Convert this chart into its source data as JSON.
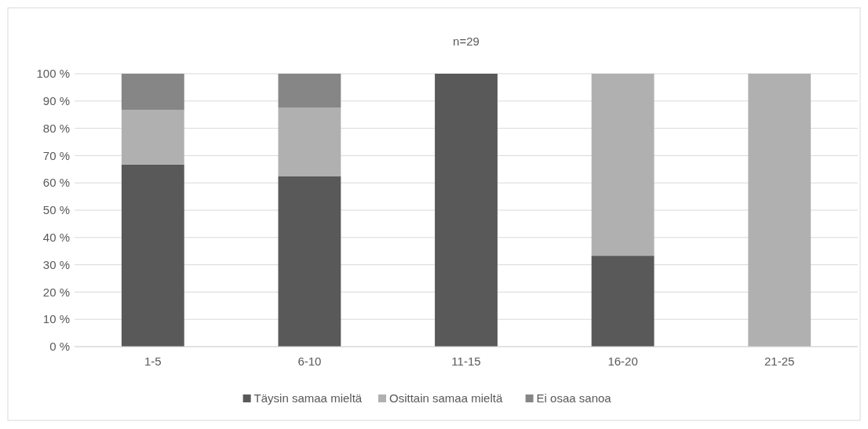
{
  "chart_data": {
    "type": "bar",
    "title": "n=29",
    "categories": [
      "1-5",
      "6-10",
      "11-15",
      "16-20",
      "21-25"
    ],
    "stacked": true,
    "series": [
      {
        "name": "Täysin samaa mieltä",
        "color": "#595959",
        "values": [
          66.7,
          62.5,
          100,
          33.3,
          0
        ]
      },
      {
        "name": "Osittain samaa mieltä",
        "color": "#b0b0b0",
        "values": [
          20,
          25,
          0,
          66.7,
          100
        ]
      },
      {
        "name": "Ei osaa sanoa",
        "color": "#868686",
        "values": [
          13.3,
          12.5,
          0,
          0,
          0
        ]
      }
    ],
    "ylim": [
      0,
      100
    ],
    "yticks": [
      {
        "value": 0,
        "label": "0 %"
      },
      {
        "value": 10,
        "label": "10 %"
      },
      {
        "value": 20,
        "label": "20 %"
      },
      {
        "value": 30,
        "label": "30 %"
      },
      {
        "value": 40,
        "label": "40 %"
      },
      {
        "value": 50,
        "label": "50 %"
      },
      {
        "value": 60,
        "label": "60 %"
      },
      {
        "value": 70,
        "label": "70 %"
      },
      {
        "value": 80,
        "label": "80 %"
      },
      {
        "value": 90,
        "label": "90 %"
      },
      {
        "value": 100,
        "label": "100 %"
      }
    ],
    "grid": "y",
    "legend": "bottom"
  }
}
